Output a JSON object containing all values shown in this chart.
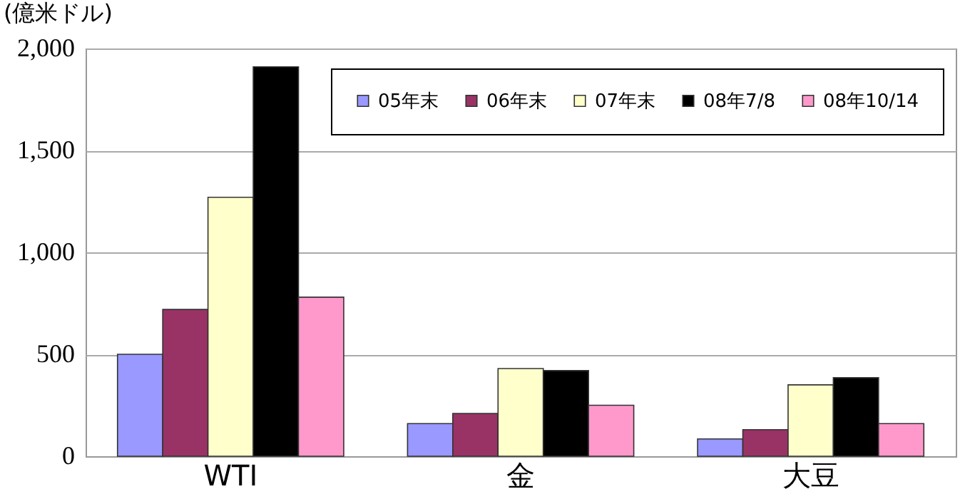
{
  "chart_data": {
    "type": "bar",
    "ylabel": "(億米ドル)",
    "categories": [
      "WTI",
      "金",
      "大豆"
    ],
    "series": [
      {
        "name": "05年末",
        "color": "#9999ff",
        "values": [
          500,
          160,
          85
        ]
      },
      {
        "name": "06年末",
        "color": "#993366",
        "values": [
          720,
          210,
          130
        ]
      },
      {
        "name": "07年末",
        "color": "#ffffcc",
        "values": [
          1270,
          430,
          350
        ]
      },
      {
        "name": "08年7/8",
        "color": "#000000",
        "values": [
          1910,
          420,
          385
        ]
      },
      {
        "name": "08年10/14",
        "color": "#ff99cc",
        "values": [
          780,
          250,
          160
        ]
      }
    ],
    "ylim": [
      0,
      2000
    ],
    "yticks": [
      {
        "value": 0,
        "label": "0"
      },
      {
        "value": 500,
        "label": "500"
      },
      {
        "value": 1000,
        "label": "1,000"
      },
      {
        "value": 1500,
        "label": "1,500"
      },
      {
        "value": 2000,
        "label": "2,000"
      }
    ],
    "grid": "y",
    "legend": "top right"
  }
}
